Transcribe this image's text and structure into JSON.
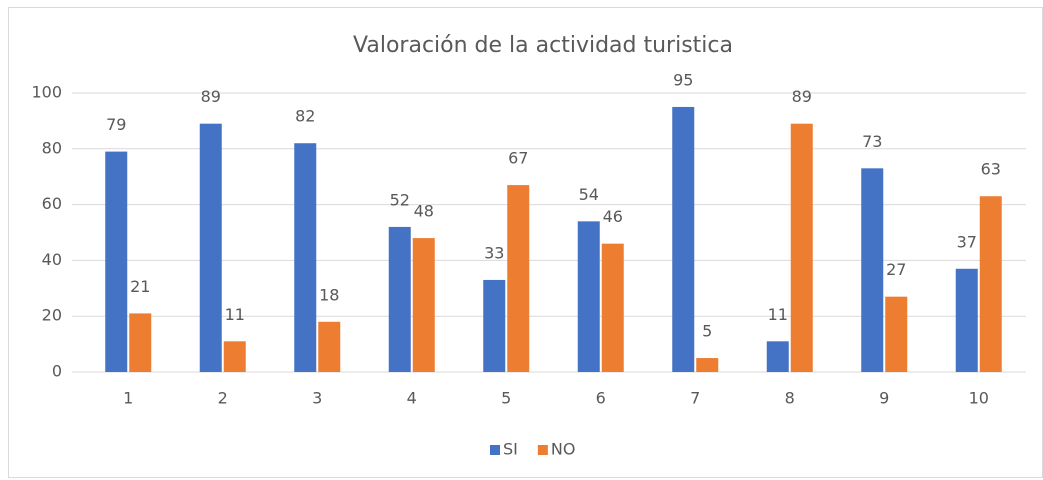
{
  "chart_data": {
    "type": "bar",
    "title": "Valoración de la actividad turistica",
    "categories": [
      "1",
      "2",
      "3",
      "4",
      "5",
      "6",
      "7",
      "8",
      "9",
      "10"
    ],
    "series": [
      {
        "name": "SI",
        "color": "#4472c4",
        "values": [
          79,
          89,
          82,
          52,
          33,
          54,
          95,
          11,
          73,
          37
        ]
      },
      {
        "name": "NO",
        "color": "#ed7d31",
        "values": [
          21,
          11,
          18,
          48,
          67,
          46,
          5,
          89,
          27,
          63
        ]
      }
    ],
    "ylim": [
      0,
      100
    ],
    "yticks": [
      0,
      20,
      40,
      60,
      80,
      100
    ],
    "grid": true,
    "legend": "bottom"
  }
}
